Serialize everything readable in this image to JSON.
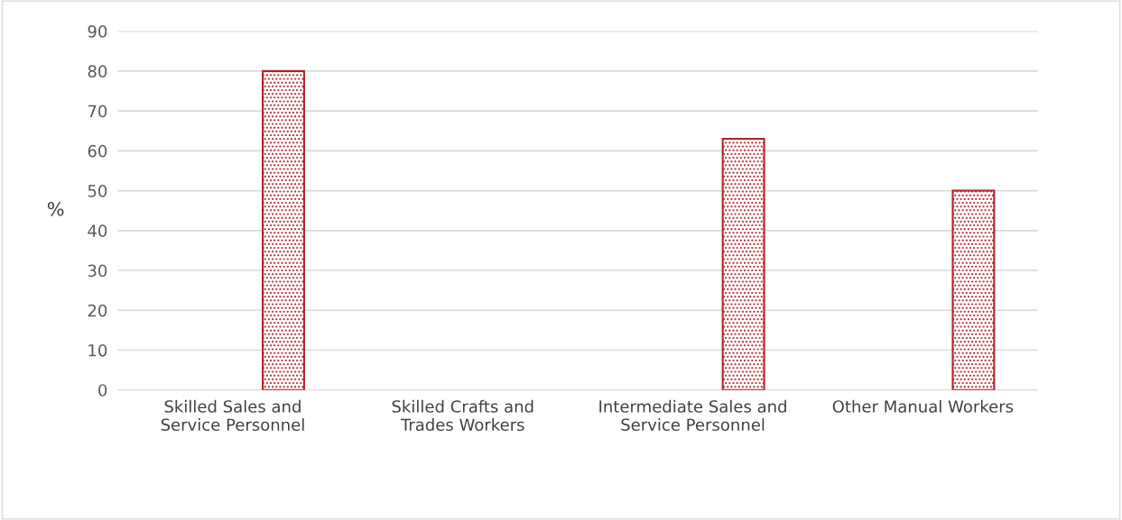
{
  "chart_data": {
    "type": "bar",
    "ylabel": "%",
    "categories": [
      "Skilled Sales and\nService Personnel",
      "Skilled Crafts and\nTrades Workers",
      "Intermediate Sales and\nService Personnel",
      "Other Manual Workers"
    ],
    "series": [
      {
        "color": "#b2232a",
        "values": [
          80,
          null,
          63,
          50
        ]
      }
    ],
    "ylim": [
      0,
      90
    ],
    "yticks": [
      0,
      10,
      20,
      30,
      40,
      50,
      60,
      70,
      80,
      90
    ],
    "grid": "y",
    "legend": false
  }
}
